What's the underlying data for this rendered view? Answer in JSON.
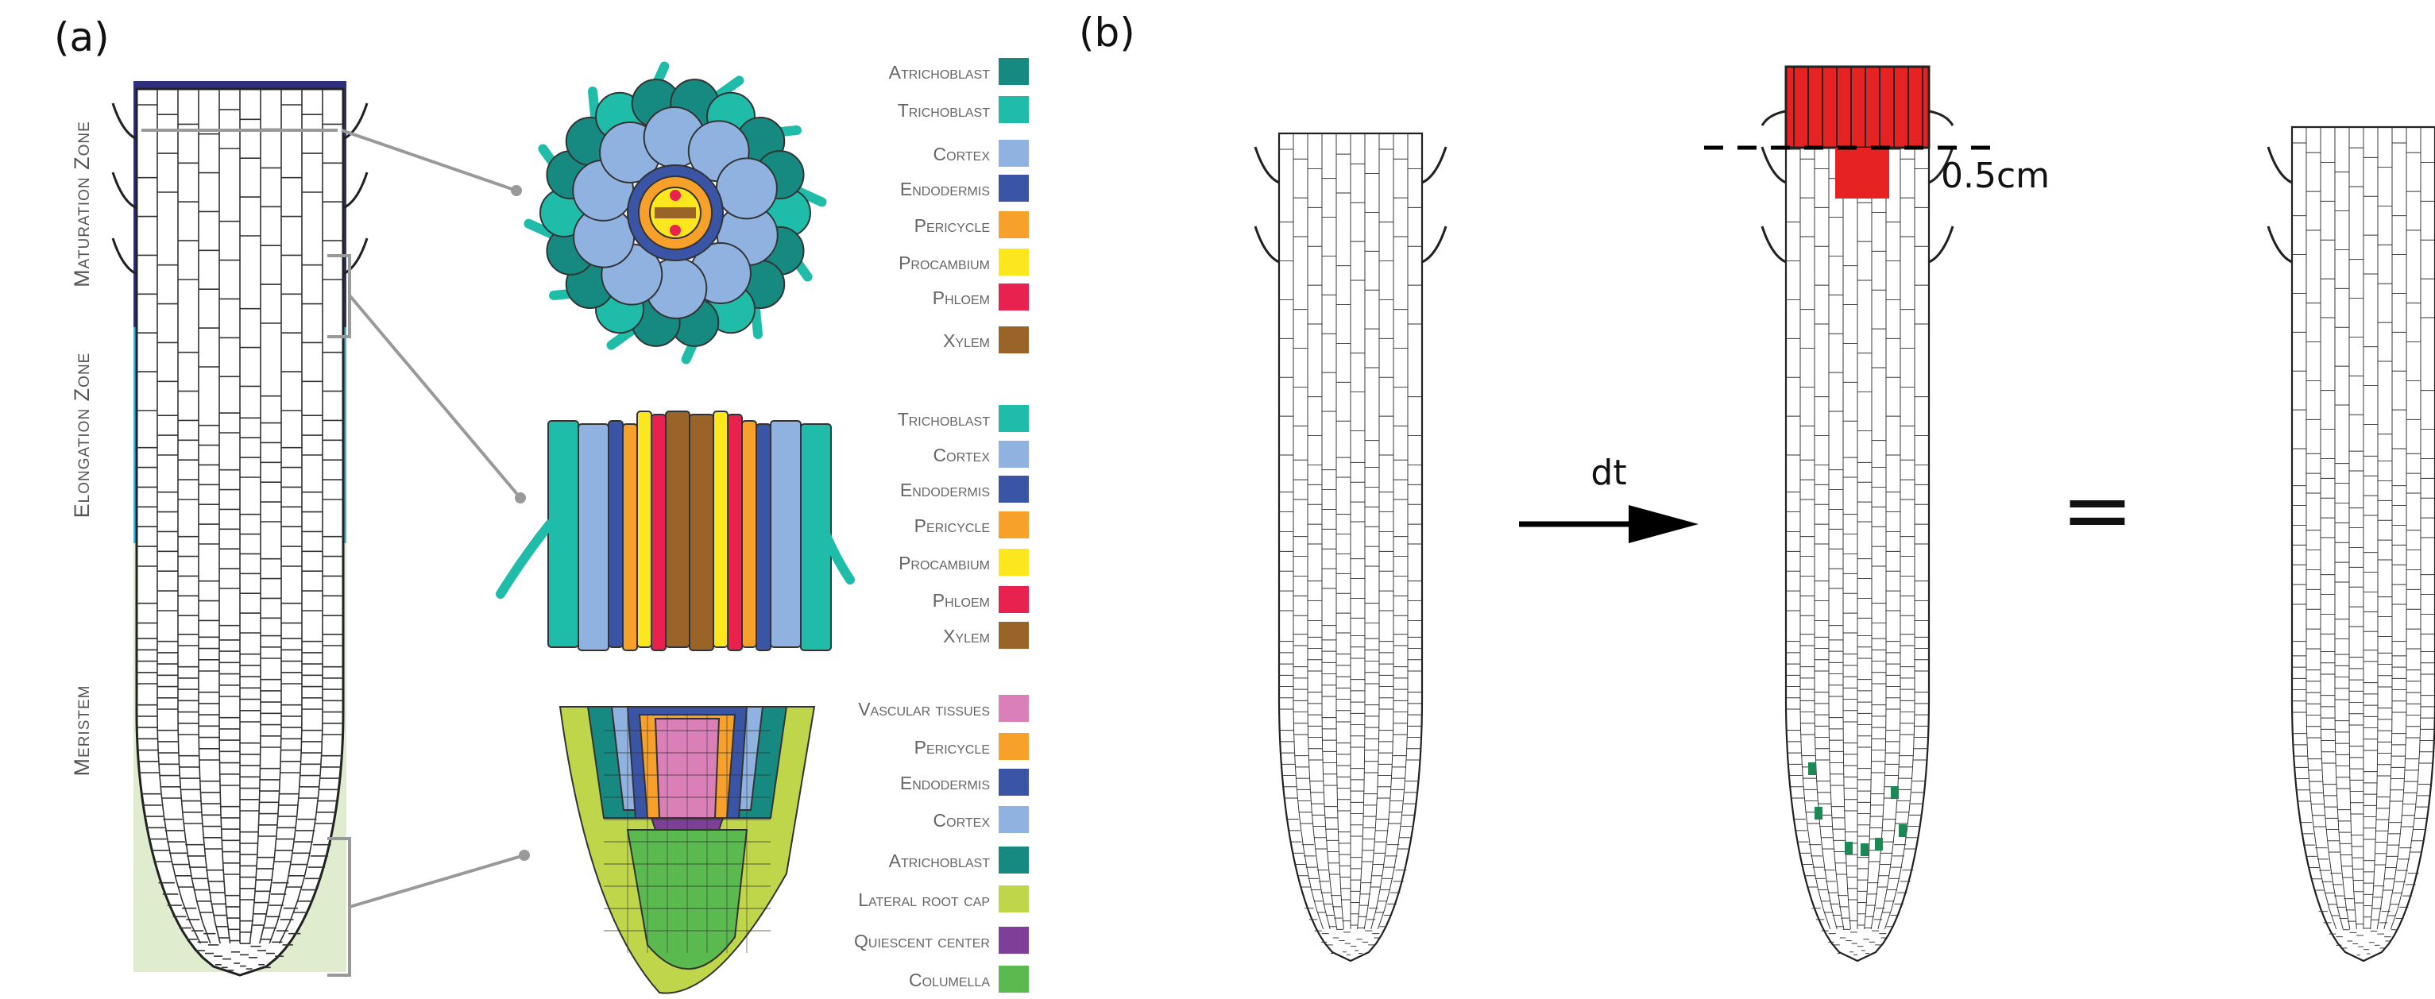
{
  "panels": {
    "a": {
      "label": "(a)"
    },
    "b": {
      "label": "(b)"
    }
  },
  "zones": [
    {
      "label": "Maturation Zone",
      "color": "#2f2f7f"
    },
    {
      "label": "Elongation Zone",
      "color": "#3cb4db"
    },
    {
      "label": "Meristem",
      "color": "#dfeccd"
    }
  ],
  "legends": [
    {
      "items": [
        {
          "label": "Atrichoblast",
          "color": "#168a80"
        },
        {
          "label": "Trichoblast",
          "color": "#1fbcaa"
        },
        {
          "label": "Cortex",
          "color": "#8fb2e0"
        },
        {
          "label": "Endodermis",
          "color": "#3a55a6"
        },
        {
          "label": "Pericycle",
          "color": "#f7a02a"
        },
        {
          "label": "Procambium",
          "color": "#fce61e"
        },
        {
          "label": "Phloem",
          "color": "#e8214f"
        },
        {
          "label": "Xylem",
          "color": "#9a6328"
        }
      ]
    },
    {
      "items": [
        {
          "label": "Trichoblast",
          "color": "#1fbcaa"
        },
        {
          "label": "Cortex",
          "color": "#8fb2e0"
        },
        {
          "label": "Endodermis",
          "color": "#3a55a6"
        },
        {
          "label": "Pericycle",
          "color": "#f7a02a"
        },
        {
          "label": "Procambium",
          "color": "#fce61e"
        },
        {
          "label": "Phloem",
          "color": "#e8214f"
        },
        {
          "label": "Xylem",
          "color": "#9a6328"
        }
      ]
    },
    {
      "items": [
        {
          "label": "Vascular tissues",
          "color": "#db7fb8"
        },
        {
          "label": "Pericycle",
          "color": "#f7a02a"
        },
        {
          "label": "Endodermis",
          "color": "#3a55a6"
        },
        {
          "label": "Cortex",
          "color": "#8fb2e0"
        },
        {
          "label": "Atrichoblast",
          "color": "#168a80"
        },
        {
          "label": "Lateral root cap",
          "color": "#bfd64a"
        },
        {
          "label": "Quiescent center",
          "color": "#7d3f98"
        },
        {
          "label": "Columella",
          "color": "#5bba4f"
        }
      ]
    }
  ],
  "panel_b": {
    "arrow_label": "dt",
    "cut_label": "0.5cm",
    "equals": "=",
    "cut_color": "#e62222",
    "new_cell_color": "#1a8a55"
  }
}
